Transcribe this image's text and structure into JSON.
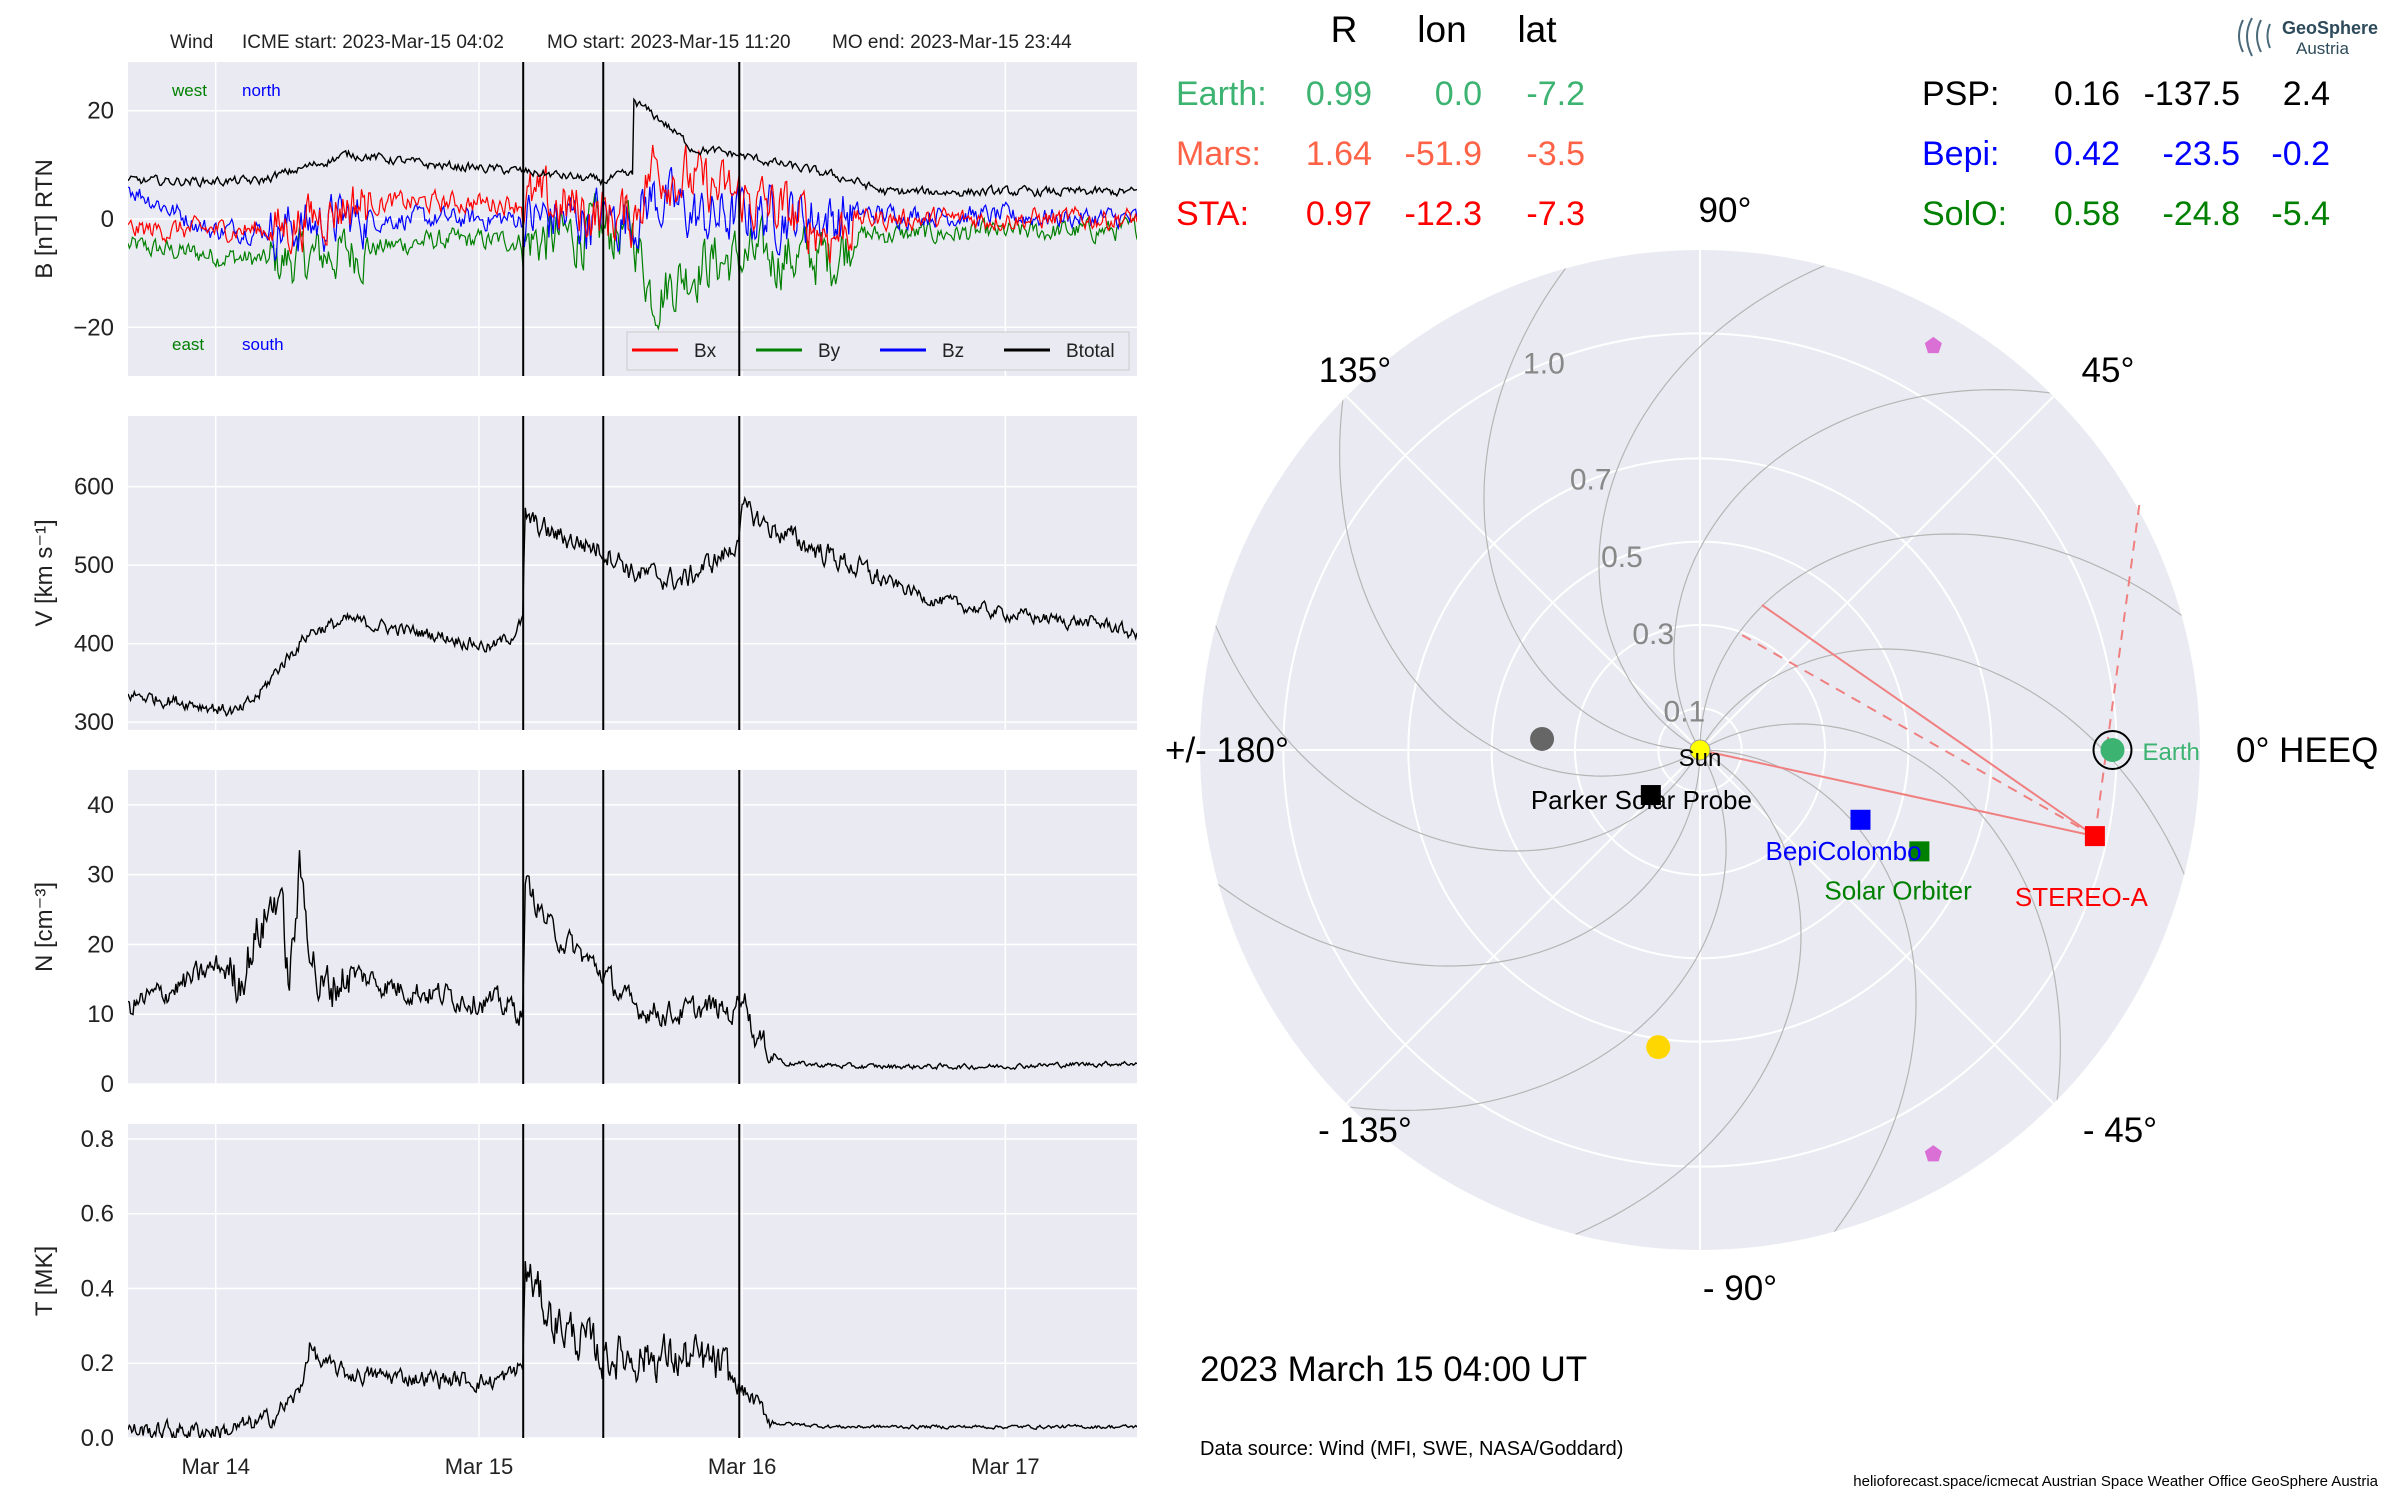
{
  "title": "Wind",
  "header": {
    "icme_start": "ICME start: 2023-Mar-15 04:02",
    "mo_start": "MO start: 2023-Mar-15 11:20",
    "mo_end": "MO end: 2023-Mar-15 23:44"
  },
  "logo": {
    "name": "GeoSphere",
    "sub": "Austria"
  },
  "timestamp": "2023 March 15  04:00 UT",
  "data_source": "Data source: Wind (MFI, SWE, NASA/Goddard)",
  "footer": "helioforecast.space/icmecat   Austrian Space Weather Office   GeoSphere Austria",
  "colors": {
    "bx": "#ff0000",
    "by": "#008000",
    "bz": "#0000ff",
    "btotal": "#000000",
    "panel_bg": "#eaeaf2",
    "grid": "#ffffff"
  },
  "positions": {
    "headers": [
      "R",
      "lon",
      "lat"
    ],
    "rows_left": [
      {
        "name": "Earth:",
        "r": "0.99",
        "lon": "0.0",
        "lat": "-7.2",
        "color": "#3cb371"
      },
      {
        "name": "Mars:",
        "r": "1.64",
        "lon": "-51.9",
        "lat": "-3.5",
        "color": "#ff6347"
      },
      {
        "name": "STA:",
        "r": "0.97",
        "lon": "-12.3",
        "lat": "-7.3",
        "color": "#ff0000"
      }
    ],
    "rows_right": [
      {
        "name": "PSP:",
        "r": "0.16",
        "lon": "-137.5",
        "lat": "2.4",
        "color": "#000000"
      },
      {
        "name": "Bepi:",
        "r": "0.42",
        "lon": "-23.5",
        "lat": "-0.2",
        "color": "#0000ff"
      },
      {
        "name": "SolO:",
        "r": "0.58",
        "lon": "-24.8",
        "lat": "-5.4",
        "color": "#008000"
      }
    ]
  },
  "chart_data": [
    {
      "type": "line",
      "ylabel": "B [nT] RTN",
      "ylim": [
        -29,
        29
      ],
      "yticks": [
        20,
        0,
        -20
      ],
      "ytick_labels": [
        "20",
        "0",
        "−20"
      ],
      "annotations": {
        "west": "west",
        "north": "north",
        "east": "east",
        "south": "south"
      },
      "legend": [
        "Bx",
        "By",
        "Bz",
        "Btotal"
      ],
      "legend_position": "lower-right",
      "x_range": [
        "2023-03-13 16:00",
        "2023-03-17 12:00"
      ],
      "xtick_labels": [
        "Mar 14",
        "Mar 15",
        "Mar 16",
        "Mar 17"
      ],
      "vlines": [
        "2023-03-15 04:02",
        "2023-03-15 11:20",
        "2023-03-15 23:44"
      ],
      "series_profile": {
        "Btotal": [
          [
            0,
            7
          ],
          [
            0.13,
            7
          ],
          [
            0.22,
            12
          ],
          [
            0.3,
            10
          ],
          [
            0.38,
            9
          ],
          [
            0.43,
            8
          ],
          [
            0.47,
            7
          ],
          [
            0.49,
            8
          ],
          [
            0.5,
            8
          ],
          [
            0.5,
            22
          ],
          [
            0.53,
            18
          ],
          [
            0.56,
            13
          ],
          [
            0.6,
            12
          ],
          [
            0.65,
            10
          ],
          [
            0.7,
            8
          ],
          [
            0.72,
            7
          ],
          [
            0.75,
            5
          ],
          [
            1,
            5
          ]
        ],
        "Bx": [
          [
            0,
            -2
          ],
          [
            0.15,
            -2
          ],
          [
            0.22,
            3
          ],
          [
            0.4,
            3
          ],
          [
            0.5,
            0
          ],
          [
            0.52,
            10
          ],
          [
            0.57,
            6
          ],
          [
            0.64,
            2
          ],
          [
            0.7,
            -3
          ],
          [
            0.72,
            0
          ],
          [
            1,
            0
          ]
        ],
        "By": [
          [
            0,
            -5
          ],
          [
            0.15,
            -8
          ],
          [
            0.22,
            -6
          ],
          [
            0.3,
            -4
          ],
          [
            0.4,
            -4
          ],
          [
            0.5,
            -2
          ],
          [
            0.52,
            -14
          ],
          [
            0.57,
            -8
          ],
          [
            0.64,
            -7
          ],
          [
            0.7,
            -7
          ],
          [
            0.72,
            -3
          ],
          [
            1,
            -2
          ]
        ],
        "Bz": [
          [
            0,
            6
          ],
          [
            0.08,
            -2
          ],
          [
            0.15,
            -2
          ],
          [
            0.22,
            0
          ],
          [
            0.4,
            0
          ],
          [
            0.5,
            0
          ],
          [
            0.52,
            4
          ],
          [
            0.57,
            0
          ],
          [
            0.64,
            1
          ],
          [
            0.7,
            0
          ],
          [
            0.72,
            1
          ],
          [
            1,
            0
          ]
        ]
      }
    },
    {
      "type": "line",
      "ylabel": "V [km s⁻¹]",
      "ylim": [
        290,
        690
      ],
      "yticks": [
        600,
        500,
        400,
        300
      ],
      "series": [
        {
          "name": "V",
          "profile": [
            [
              0,
              335
            ],
            [
              0.06,
              325
            ],
            [
              0.11,
              312
            ],
            [
              0.13,
              335
            ],
            [
              0.15,
              370
            ],
            [
              0.18,
              415
            ],
            [
              0.22,
              430
            ],
            [
              0.26,
              420
            ],
            [
              0.31,
              410
            ],
            [
              0.36,
              395
            ],
            [
              0.38,
              410
            ],
            [
              0.392,
              430
            ],
            [
              0.393,
              560
            ],
            [
              0.42,
              540
            ],
            [
              0.47,
              520
            ],
            [
              0.49,
              505
            ],
            [
              0.5,
              490
            ],
            [
              0.55,
              480
            ],
            [
              0.58,
              505
            ],
            [
              0.6,
              520
            ],
            [
              0.61,
              570
            ],
            [
              0.64,
              545
            ],
            [
              0.7,
              510
            ],
            [
              0.75,
              480
            ],
            [
              0.8,
              455
            ],
            [
              0.86,
              440
            ],
            [
              0.92,
              430
            ],
            [
              0.97,
              425
            ],
            [
              1,
              410
            ]
          ]
        }
      ]
    },
    {
      "type": "line",
      "ylabel": "N [cm⁻³]",
      "ylim": [
        0,
        45
      ],
      "yticks": [
        40,
        30,
        20,
        10,
        0
      ],
      "series": [
        {
          "name": "N",
          "profile": [
            [
              0,
              11
            ],
            [
              0.05,
              14
            ],
            [
              0.09,
              17
            ],
            [
              0.11,
              15
            ],
            [
              0.13,
              22
            ],
            [
              0.15,
              28
            ],
            [
              0.16,
              14
            ],
            [
              0.17,
              30
            ],
            [
              0.19,
              13
            ],
            [
              0.22,
              16
            ],
            [
              0.26,
              14
            ],
            [
              0.3,
              13
            ],
            [
              0.35,
              12
            ],
            [
              0.38,
              11
            ],
            [
              0.392,
              10
            ],
            [
              0.393,
              29
            ],
            [
              0.42,
              22
            ],
            [
              0.47,
              16
            ],
            [
              0.5,
              11
            ],
            [
              0.54,
              10
            ],
            [
              0.58,
              11
            ],
            [
              0.6,
              10
            ],
            [
              0.61,
              14
            ],
            [
              0.62,
              7
            ],
            [
              0.65,
              3
            ],
            [
              0.72,
              2.5
            ],
            [
              0.85,
              2.5
            ],
            [
              1,
              3
            ]
          ]
        }
      ]
    },
    {
      "type": "line",
      "ylabel": "T [MK]",
      "ylim": [
        0,
        0.84
      ],
      "yticks": [
        0.8,
        0.6,
        0.4,
        0.2,
        0.0
      ],
      "series": [
        {
          "name": "T",
          "profile": [
            [
              0,
              0.02
            ],
            [
              0.1,
              0.02
            ],
            [
              0.14,
              0.05
            ],
            [
              0.17,
              0.12
            ],
            [
              0.18,
              0.25
            ],
            [
              0.19,
              0.2
            ],
            [
              0.22,
              0.17
            ],
            [
              0.3,
              0.16
            ],
            [
              0.36,
              0.15
            ],
            [
              0.38,
              0.17
            ],
            [
              0.392,
              0.2
            ],
            [
              0.393,
              0.45
            ],
            [
              0.42,
              0.32
            ],
            [
              0.47,
              0.22
            ],
            [
              0.52,
              0.22
            ],
            [
              0.58,
              0.2
            ],
            [
              0.6,
              0.15
            ],
            [
              0.62,
              0.1
            ],
            [
              0.64,
              0.04
            ],
            [
              0.7,
              0.03
            ],
            [
              0.85,
              0.03
            ],
            [
              1,
              0.03
            ]
          ]
        }
      ]
    },
    {
      "type": "scatter",
      "projection": "polar",
      "rticks": [
        "0.1",
        "0.3",
        "0.5",
        "0.7",
        "1.0"
      ],
      "rlim": [
        0,
        1.2
      ],
      "angle_labels": {
        "0": "0° HEEQ",
        "45": "45°",
        "90": "90°",
        "135": "135°",
        "180": "+/- 180°",
        "-135": "- 135°",
        "-90": "- 90°",
        "-45": "- 45°"
      },
      "bodies": [
        {
          "name": "Sun",
          "r": 0,
          "lon": 0,
          "color": "#ffff00",
          "marker": "circle"
        },
        {
          "name": "Earth",
          "r": 0.99,
          "lon": 0.0,
          "color": "#3cb371",
          "marker": "circle"
        },
        {
          "name": "STEREO-A",
          "r": 0.97,
          "lon": -12.3,
          "color": "#ff0000",
          "marker": "square"
        },
        {
          "name": "BepiColombo",
          "r": 0.42,
          "lon": -23.5,
          "color": "#0000ff",
          "marker": "square"
        },
        {
          "name": "Solar Orbiter",
          "r": 0.58,
          "lon": -24.8,
          "color": "#008000",
          "marker": "square"
        },
        {
          "name": "Parker Solar Probe",
          "r": 0.16,
          "lon": -137.5,
          "color": "#000000",
          "marker": "square"
        },
        {
          "name": "",
          "r": 0.38,
          "lon": 176,
          "color": "#666666",
          "marker": "circle"
        },
        {
          "name": "",
          "r": 0.72,
          "lon": -98,
          "color": "#ffd700",
          "marker": "circle"
        },
        {
          "name": "",
          "r": 1.12,
          "lon": 60,
          "color": "#da70d6",
          "marker": "pentagon"
        },
        {
          "name": "",
          "r": 1.12,
          "lon": -60,
          "color": "#da70d6",
          "marker": "pentagon"
        }
      ]
    }
  ]
}
